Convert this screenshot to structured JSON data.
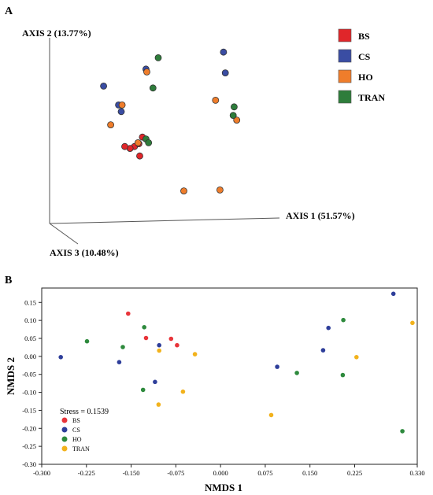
{
  "panels": {
    "a_label": "A",
    "b_label": "B"
  },
  "chart_data": [
    {
      "type": "scatter",
      "projection": "3d-pcoa",
      "panel": "A",
      "axis_labels": {
        "axis1": "AXIS 1 (51.57%)",
        "axis2": "AXIS 2 (13.77%)",
        "axis3": "AXIS 3 (10.48%)"
      },
      "legend": {
        "placement": "top-right",
        "style": "squares",
        "entries": [
          {
            "label": "BS",
            "color": "#e0262a"
          },
          {
            "label": "CS",
            "color": "#3a4da3"
          },
          {
            "label": "HO",
            "color": "#ef7d2b"
          },
          {
            "label": "TRAN",
            "color": "#2e7d3b"
          }
        ]
      },
      "note": "Points are plotted in a 3D projection; values below are the positions read from the figure's projected plane (axis 1 rightward, axis 2 upward) rather than exact ordination scores.",
      "series": [
        {
          "name": "BS",
          "points": [
            [
              -0.51,
              -0.06
            ],
            [
              -0.6,
              -0.16
            ],
            [
              -0.65,
              -0.18
            ],
            [
              -0.71,
              -0.16
            ],
            [
              -0.54,
              -0.26
            ],
            [
              -0.55,
              -0.13
            ]
          ]
        },
        {
          "name": "CS",
          "points": [
            [
              -0.95,
              0.48
            ],
            [
              -0.78,
              0.28
            ],
            [
              -0.75,
              0.21
            ],
            [
              -0.47,
              0.66
            ],
            [
              0.41,
              0.84
            ],
            [
              0.43,
              0.62
            ]
          ]
        },
        {
          "name": "HO",
          "points": [
            [
              -0.87,
              0.07
            ],
            [
              -0.74,
              0.28
            ],
            [
              -0.46,
              0.63
            ],
            [
              0.32,
              0.33
            ],
            [
              0.56,
              0.12
            ],
            [
              -0.04,
              -0.63
            ],
            [
              0.37,
              -0.62
            ],
            [
              -0.56,
              -0.12
            ]
          ]
        },
        {
          "name": "TRAN",
          "points": [
            [
              -0.33,
              0.78
            ],
            [
              -0.39,
              0.46
            ],
            [
              -0.47,
              -0.08
            ],
            [
              -0.44,
              -0.12
            ],
            [
              0.53,
              0.26
            ],
            [
              0.52,
              0.17
            ]
          ]
        }
      ]
    },
    {
      "type": "scatter",
      "panel": "B",
      "xlabel": "NMDS 1",
      "ylabel": "NMDS 2",
      "xlim": [
        -0.3,
        0.33
      ],
      "ylim": [
        -0.3,
        0.19
      ],
      "xticks": [
        "-0.300",
        "-0.225",
        "-0.150",
        "-0.075",
        "0.000",
        "0.075",
        "0.150",
        "0.225",
        "0.330"
      ],
      "xtick_values": [
        -0.3,
        -0.225,
        -0.15,
        -0.075,
        0.0,
        0.075,
        0.15,
        0.225,
        0.33
      ],
      "yticks": [
        "0.15",
        "0.10",
        "0.05",
        "0.00",
        "-0.05",
        "-0.10",
        "-0.15",
        "-0.20",
        "-0.25",
        "-0.30"
      ],
      "ytick_values": [
        0.15,
        0.1,
        0.05,
        0.0,
        -0.05,
        -0.1,
        -0.15,
        -0.2,
        -0.25,
        -0.3
      ],
      "stress_text": "Stress = 0.1539",
      "legend": {
        "placement": "bottom-left",
        "style": "dots",
        "entries": [
          {
            "label": "BS",
            "color": "#e8353a"
          },
          {
            "label": "CS",
            "color": "#2e3e9a"
          },
          {
            "label": "HO",
            "color": "#2e8a3d"
          },
          {
            "label": "TRAN",
            "color": "#f2b21c"
          }
        ]
      },
      "series": [
        {
          "name": "BS",
          "points": [
            [
              -0.155,
              0.119
            ],
            [
              -0.125,
              0.051
            ],
            [
              -0.083,
              0.049
            ],
            [
              -0.073,
              0.031
            ]
          ]
        },
        {
          "name": "CS",
          "points": [
            [
              -0.268,
              -0.002
            ],
            [
              -0.17,
              -0.016
            ],
            [
              -0.103,
              0.031
            ],
            [
              -0.11,
              -0.071
            ],
            [
              0.095,
              -0.029
            ],
            [
              0.172,
              0.017
            ],
            [
              0.181,
              0.079
            ],
            [
              0.29,
              0.174
            ]
          ]
        },
        {
          "name": "HO",
          "points": [
            [
              -0.224,
              0.042
            ],
            [
              -0.164,
              0.026
            ],
            [
              -0.128,
              0.081
            ],
            [
              -0.13,
              -0.093
            ],
            [
              0.128,
              -0.046
            ],
            [
              0.205,
              -0.052
            ],
            [
              0.206,
              0.101
            ],
            [
              0.305,
              -0.208
            ]
          ]
        },
        {
          "name": "TRAN",
          "points": [
            [
              -0.103,
              0.016
            ],
            [
              -0.104,
              -0.134
            ],
            [
              -0.063,
              -0.098
            ],
            [
              -0.043,
              0.006
            ],
            [
              0.085,
              -0.163
            ],
            [
              0.228,
              -0.002
            ],
            [
              0.322,
              0.093
            ]
          ]
        }
      ]
    }
  ]
}
